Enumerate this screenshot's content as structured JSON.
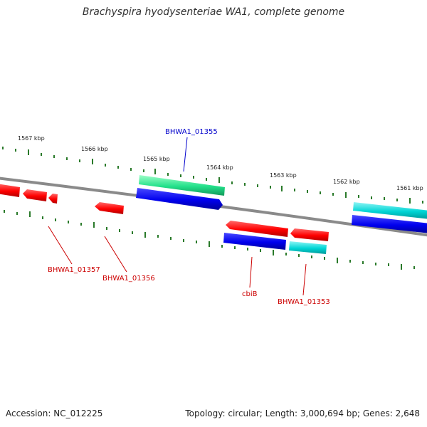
{
  "title": "Brachyspira hyodysenteriae WA1, complete genome",
  "footer": {
    "accession": "Accession: NC_012225",
    "summary": "Topology: circular; Length: 3,000,694 bp; Genes: 2,648"
  },
  "colors": {
    "backbone": "#8a8a8a",
    "tick": "#2a7a2a",
    "forward_gene": "#ff0000",
    "reverse_gene": "#0000ee",
    "cyan_gene": "#00d5d5",
    "green_gene": "#22e08a",
    "label_red": "#cc0000",
    "label_blue": "#0000cc"
  },
  "scale_labels": [
    "1567 kbp",
    "1566 kbp",
    "1565 kbp",
    "1564 kbp",
    "1563 kbp",
    "1562 kbp",
    "1561 kbp"
  ],
  "gene_labels": [
    {
      "id": "BHWA1_01355",
      "color": "blue"
    },
    {
      "id": "BHWA1_01357",
      "color": "red"
    },
    {
      "id": "BHWA1_01356",
      "color": "red"
    },
    {
      "id": "cbiB",
      "color": "red"
    },
    {
      "id": "BHWA1_01353",
      "color": "red"
    }
  ]
}
